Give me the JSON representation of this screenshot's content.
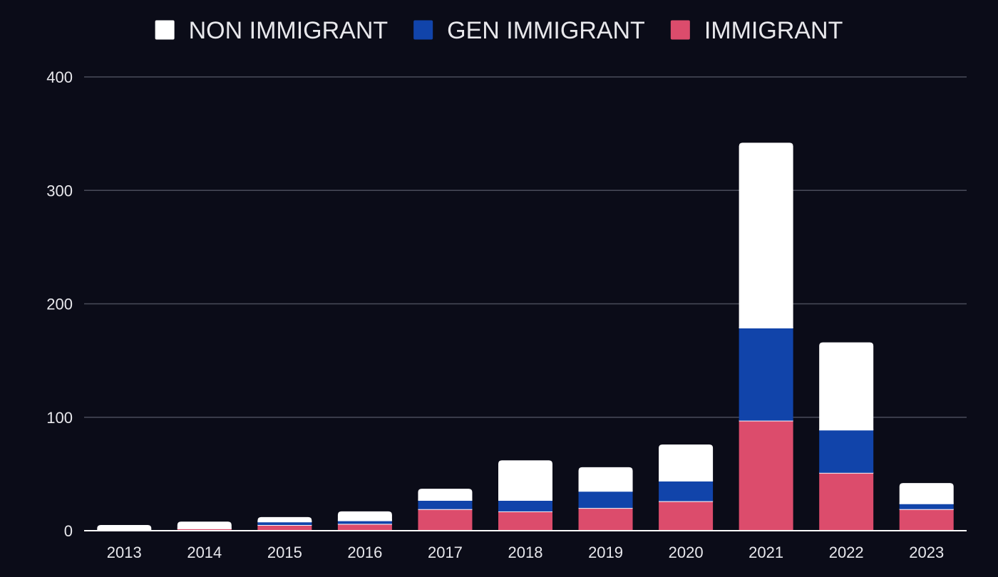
{
  "chart_data": {
    "type": "bar",
    "stacked": true,
    "title": "",
    "xlabel": "",
    "ylabel": "",
    "categories": [
      "2013",
      "2014",
      "2015",
      "2016",
      "2017",
      "2018",
      "2019",
      "2020",
      "2021",
      "2022",
      "2023"
    ],
    "series": [
      {
        "name": "IMMIGRANT",
        "color": "#dc4c6c",
        "values": [
          0,
          2,
          5,
          6,
          19,
          17,
          20,
          26,
          97,
          51,
          19
        ]
      },
      {
        "name": "GEN IMMIGRANT",
        "color": "#1144aa",
        "values": [
          0,
          0,
          3,
          3,
          8,
          10,
          15,
          18,
          82,
          38,
          5
        ]
      },
      {
        "name": "NON IMMIGRANT",
        "color": "#ffffff",
        "values": [
          5,
          6,
          4,
          8,
          10,
          35,
          21,
          32,
          163,
          77,
          18
        ]
      }
    ],
    "legend_order": [
      "NON IMMIGRANT",
      "GEN IMMIGRANT",
      "IMMIGRANT"
    ],
    "legend_position": "top-center",
    "ylim": [
      0,
      400
    ],
    "yticks": [
      0,
      100,
      200,
      300,
      400
    ],
    "grid": true,
    "background": "#0b0c18",
    "gridline_color": "#4a4c5a",
    "axis_color": "#ffffff",
    "text_color": "#e8e8ec"
  }
}
